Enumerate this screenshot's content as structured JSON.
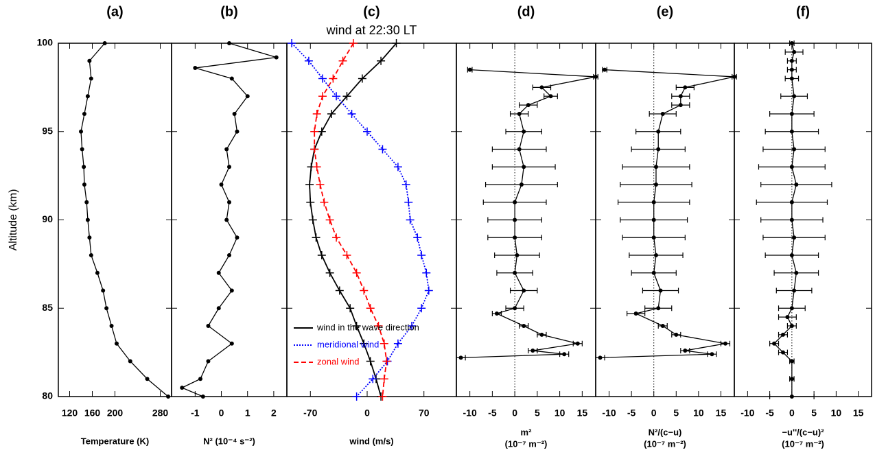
{
  "chart_data": [
    {
      "type": "profile",
      "title": "(a)",
      "xlabel": [
        "Temperature (K)"
      ],
      "ylabel": "Altitude (km)",
      "xlim": [
        100,
        300
      ],
      "xticks": [
        120,
        160,
        200,
        280
      ],
      "ylim": [
        80,
        100
      ],
      "yticks": [
        80,
        85,
        90,
        95,
        100
      ],
      "show_ytick_labels": true,
      "altitude": [
        100,
        99,
        98,
        97,
        96,
        95,
        94,
        93,
        92,
        91,
        90,
        89,
        88,
        87,
        86,
        85,
        84,
        83,
        82,
        81,
        80
      ],
      "series": [
        {
          "color": "#000000",
          "line_style": "solid",
          "marker": "dot",
          "values": [
            182,
            155,
            158,
            152,
            146,
            140,
            142,
            145,
            146,
            150,
            152,
            155,
            158,
            169,
            179,
            185,
            194,
            203,
            227,
            257,
            294
          ]
        }
      ]
    },
    {
      "type": "profile",
      "title": "(b)",
      "xlabel": [
        "N² (10⁻⁴ s⁻²)"
      ],
      "xlim": [
        -1.9,
        2.5
      ],
      "xticks": [
        -1,
        0,
        1,
        2
      ],
      "ylim": [
        80,
        100
      ],
      "yticks": [
        80,
        85,
        90,
        95,
        100
      ],
      "show_ytick_labels": false,
      "altitude": [
        100,
        99.2,
        98.6,
        98,
        97,
        96,
        95,
        94,
        93,
        92,
        91,
        90,
        89,
        88,
        87,
        86,
        85,
        84,
        83,
        82,
        81,
        80.5,
        80
      ],
      "series": [
        {
          "color": "#000000",
          "line_style": "solid",
          "marker": "dot",
          "values": [
            0.3,
            2.1,
            -1.0,
            0.4,
            1.0,
            0.5,
            0.6,
            0.2,
            0.3,
            0.0,
            0.3,
            0.2,
            0.6,
            0.3,
            -0.1,
            0.4,
            -0.1,
            -0.5,
            0.4,
            -0.5,
            -0.8,
            -1.5,
            -0.7
          ]
        }
      ]
    },
    {
      "type": "profile",
      "title": "(c)",
      "subtitle": "wind at 22:30 LT",
      "xlabel": [
        "wind (m/s)"
      ],
      "xlim": [
        -99,
        110
      ],
      "xticks": [
        -70,
        0,
        70
      ],
      "ylim": [
        80,
        100
      ],
      "yticks": [
        80,
        85,
        90,
        95,
        100
      ],
      "show_ytick_labels": false,
      "legend": "lower left",
      "altitude": [
        100,
        99,
        98,
        97,
        96,
        95,
        94,
        93,
        92,
        91,
        90,
        89,
        88,
        87,
        86,
        85,
        84,
        83,
        82,
        81,
        80
      ],
      "series": [
        {
          "name": "wind in the wave direction",
          "color": "#000000",
          "line_style": "solid",
          "marker": "plus",
          "values": [
            36,
            17,
            -6,
            -25,
            -44,
            -56,
            -65,
            -69,
            -71,
            -70,
            -67,
            -63,
            -56,
            -46,
            -34,
            -21,
            -13,
            -4,
            4,
            11,
            17
          ]
        },
        {
          "name": "meridional wind",
          "color": "#0000ff",
          "line_style": "dotted",
          "marker": "plus",
          "values": [
            -93,
            -72,
            -55,
            -38,
            -19,
            0,
            19,
            38,
            48,
            51,
            53,
            62,
            67,
            73,
            76,
            67,
            55,
            38,
            25,
            7,
            -13
          ]
        },
        {
          "name": "zonal wind",
          "color": "#ff0000",
          "line_style": "dashed",
          "marker": "plus",
          "values": [
            -17,
            -30,
            -42,
            -55,
            -62,
            -65,
            -65,
            -62,
            -58,
            -53,
            -46,
            -38,
            -25,
            -13,
            -4,
            4,
            14,
            21,
            24,
            21,
            19
          ]
        }
      ]
    },
    {
      "type": "profile",
      "title": "(d)",
      "xlabel": [
        "m²",
        "(10⁻⁷ m⁻²)"
      ],
      "xlim": [
        -13,
        18
      ],
      "xticks": [
        -10,
        -5,
        0,
        5,
        10,
        15
      ],
      "ylim": [
        80,
        100
      ],
      "yticks": [
        80,
        85,
        90,
        95,
        100
      ],
      "show_ytick_labels": false,
      "vline": 0,
      "altitude": [
        98.5,
        98.1,
        97.5,
        97,
        96.5,
        96,
        95,
        94,
        93,
        92,
        91,
        90,
        89,
        88,
        87,
        86,
        85,
        84.7,
        84,
        83.5,
        83,
        82.6,
        82.4,
        82.2
      ],
      "series": [
        {
          "color": "#000000",
          "line_style": "solid",
          "marker": "dot",
          "values": [
            -10,
            18,
            6,
            8,
            3,
            1,
            2,
            1,
            2,
            1.5,
            0,
            0,
            0,
            0.5,
            0,
            2,
            0,
            -4,
            2,
            6,
            14,
            4,
            11,
            -12
          ],
          "errors": [
            0.5,
            0.5,
            2,
            1.5,
            2,
            2,
            4,
            6,
            7,
            8,
            7,
            6,
            6,
            5,
            4,
            3,
            2,
            1,
            1,
            1,
            1,
            1,
            1,
            1
          ]
        }
      ]
    },
    {
      "type": "profile",
      "title": "(e)",
      "xlabel": [
        "N²/(c−u)",
        "(10⁻⁷ m⁻²)"
      ],
      "xlim": [
        -13,
        18
      ],
      "xticks": [
        -10,
        -5,
        0,
        5,
        10,
        15
      ],
      "ylim": [
        80,
        100
      ],
      "yticks": [
        80,
        85,
        90,
        95,
        100
      ],
      "show_ytick_labels": false,
      "vline": 0,
      "altitude": [
        98.5,
        98.1,
        97.5,
        97,
        96.5,
        96,
        95,
        94,
        93,
        92,
        91,
        90,
        89,
        88,
        87,
        86,
        85,
        84.7,
        84,
        83.5,
        83,
        82.6,
        82.4,
        82.2
      ],
      "series": [
        {
          "color": "#000000",
          "line_style": "solid",
          "marker": "dot",
          "values": [
            -11,
            18,
            7,
            6,
            6,
            2,
            1,
            1,
            0.5,
            0.5,
            0,
            0,
            0,
            0.5,
            0,
            1.5,
            1,
            -4,
            2,
            5,
            16,
            7,
            13,
            -12
          ],
          "errors": [
            0.5,
            0.5,
            2,
            2,
            2,
            3,
            5,
            6,
            7.5,
            8,
            8,
            7.5,
            7,
            6,
            5,
            4,
            3,
            2,
            1,
            1,
            1,
            1,
            1,
            1
          ]
        }
      ]
    },
    {
      "type": "profile",
      "title": "(f)",
      "xlabel": [
        "−u''/(c−u)²",
        "(10⁻⁷ m⁻²)"
      ],
      "xlim": [
        -13,
        18
      ],
      "xticks": [
        -10,
        -5,
        0,
        5,
        10,
        15
      ],
      "ylim": [
        80,
        100
      ],
      "yticks": [
        80,
        85,
        90,
        95,
        100
      ],
      "show_ytick_labels": false,
      "vline": 0,
      "altitude": [
        100,
        99.5,
        99,
        98.5,
        98,
        97,
        96,
        95,
        94,
        93,
        92,
        91,
        90,
        89,
        88,
        87,
        86,
        85,
        84.5,
        84,
        83.5,
        83,
        82.5,
        82,
        81,
        80
      ],
      "series": [
        {
          "color": "#000000",
          "line_style": "solid",
          "marker": "dot",
          "values": [
            0,
            0.5,
            0,
            0,
            0,
            0.5,
            0,
            0,
            0.5,
            0,
            1,
            0,
            0,
            0.5,
            0,
            1,
            0.5,
            0,
            -1,
            0,
            -2,
            -4,
            -2,
            0,
            0,
            0
          ],
          "errors": [
            0.5,
            2,
            1,
            1,
            1.5,
            3,
            5,
            6,
            7,
            7.5,
            8,
            8,
            7,
            7,
            6,
            5,
            4,
            3,
            2,
            1,
            1,
            1,
            1,
            0.5,
            0.5,
            5
          ]
        }
      ]
    }
  ]
}
